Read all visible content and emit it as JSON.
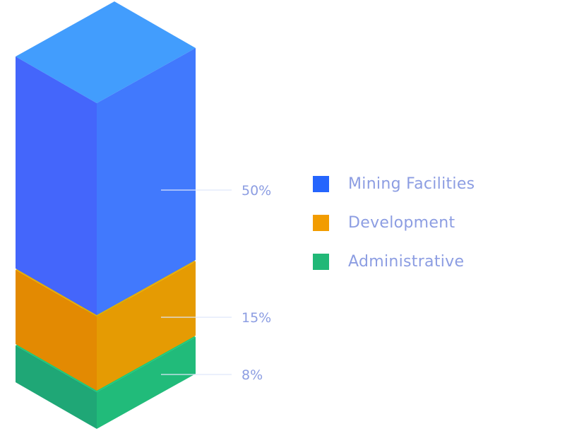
{
  "chart_data": {
    "type": "bar",
    "style": "isometric stacked column",
    "categories": [
      "Mining Facilities",
      "Development",
      "Administrative"
    ],
    "values": [
      50,
      15,
      8
    ],
    "data_labels": [
      "50%",
      "15%",
      "8%"
    ],
    "unit": "%",
    "grid": false,
    "legend_position": "right",
    "colors": {
      "Mining Facilities": {
        "legend": "#2565fd",
        "left": "#4466fb",
        "right": "#4179fd",
        "top": "#429dfd"
      },
      "Development": {
        "legend": "#f29c00",
        "left": "#e38a02",
        "right": "#e59b03",
        "top": "#e5b000"
      },
      "Administrative": {
        "legend": "#21b877",
        "left": "#1fa776",
        "right": "#21bb7a",
        "top": "#18cc78"
      }
    },
    "label_color": "#8c9de2"
  }
}
